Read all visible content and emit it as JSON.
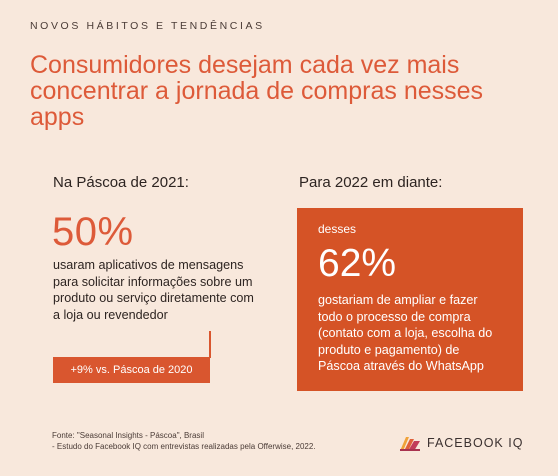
{
  "eyebrow": "NOVOS HÁBITOS E TENDÊNCIAS",
  "headline": "Consumidores desejam cada vez mais concentrar a jornada de compras nesses apps",
  "left": {
    "label": "Na Páscoa de 2021:",
    "stat": "50%",
    "description": "usaram aplicativos de mensagens para solicitar informações sobre um produto ou serviço diretamente com a loja ou revendedor",
    "badge": "+9% vs. Páscoa de 2020"
  },
  "right": {
    "label": "Para 2022 em diante:",
    "pre": "desses",
    "stat": "62%",
    "description": "gostariam de ampliar e fazer todo o processo de compra (contato com a loja, escolha do produto e pagamento) de Páscoa através do WhatsApp"
  },
  "footer": {
    "line1": "Fonte: \"Seasonal Insights - Páscoa\", Brasil",
    "line2": "- Estudo do Facebook IQ com entrevistas realizadas pela Offerwise, 2022."
  },
  "brand": {
    "name": "FACEBOOK IQ"
  },
  "colors": {
    "accent": "#dd5a39",
    "box": "#d55326",
    "background": "#f8e8dc"
  }
}
